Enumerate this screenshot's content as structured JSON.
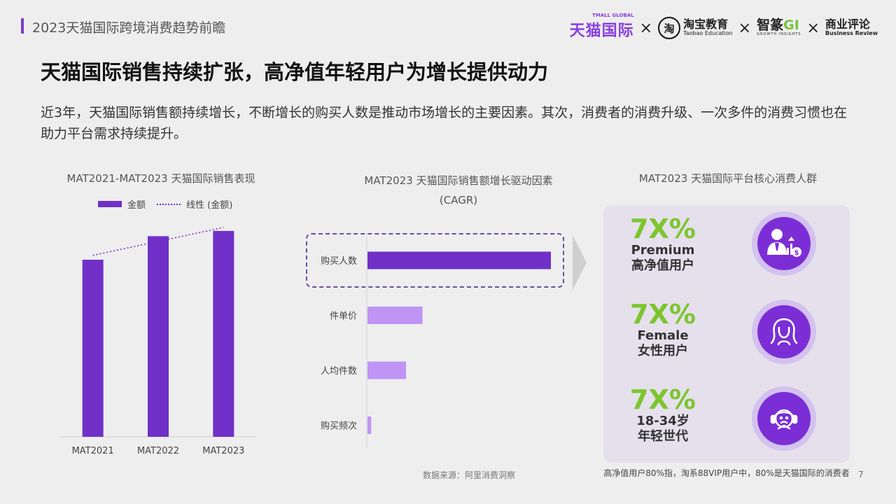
{
  "header": {
    "title": "2023天猫国际跨境消费趋势前瞻",
    "logos": {
      "tmall": "天猫国际",
      "tmall_sup": "TMALL GLOBAL",
      "separator": "×",
      "taobao_mark": "淘",
      "taobao_cn": "淘宝教育",
      "taobao_en": "Taobao Education",
      "zhizhuan_cn_a": "智篆",
      "zhizhuan_cn_b": "GI",
      "zhizhuan_en": "GROWTH INSIGHTS",
      "br_cn": "商业评论",
      "br_en": "Business Review"
    }
  },
  "slide": {
    "title": "天猫国际销售持续扩张，高净值年轻用户为增长提供动力",
    "intro": "近3年，天猫国际销售额持续增长，不断增长的购买人数是推动市场增长的主要因素。其次，消费者的消费升级、一次多件的消费习惯也在助力平台需求持续提升。"
  },
  "chart_data": [
    {
      "type": "bar",
      "title": "MAT2021-MAT2023 天猫国际销售表现",
      "categories": [
        "MAT2021",
        "MAT2022",
        "MAT2023"
      ],
      "series": [
        {
          "name": "金额",
          "values": [
            203,
            230,
            236
          ],
          "color": "#7030c8"
        },
        {
          "name": "线性 (金额)",
          "type": "trendline",
          "values": [
            208,
            224,
            240
          ],
          "color": "#7030c8"
        }
      ],
      "ylim": [
        0,
        260
      ],
      "grid": false,
      "legend": "top"
    },
    {
      "type": "bar",
      "orientation": "horizontal",
      "title": "MAT2023 天猫国际销售额增长驱动因素",
      "subtitle": "(CAGR)",
      "categories": [
        "购买人数",
        "件单价",
        "人均件数",
        "购买频次"
      ],
      "values": [
        100,
        30,
        21,
        2
      ],
      "colors": [
        "#7030c8",
        "#bf94f5",
        "#bf94f5",
        "#bf94f5"
      ],
      "highlight": "购买人数",
      "xlim": [
        0,
        100
      ]
    }
  ],
  "panel": {
    "title": "MAT2023 天猫国际平台核心消费人群",
    "stats": [
      {
        "value": "7X%",
        "en": "Premium",
        "cn": "高净值用户",
        "icon": "premium-user-icon"
      },
      {
        "value": "7X%",
        "en": "Female",
        "cn": "女性用户",
        "icon": "female-user-icon"
      },
      {
        "value": "7X%",
        "en": "18-34岁",
        "cn": "年轻世代",
        "icon": "young-user-icon"
      }
    ]
  },
  "source": "数据来源：阿里消费洞察",
  "footnote": "高净值用户80%指，淘系88VIP用户中，80%是天猫国际的消费者",
  "page_number": "7",
  "colors": {
    "accent": "#7030c8",
    "light": "#bf94f5",
    "green": "#7dc52e",
    "panel": "#e5e0ec"
  }
}
